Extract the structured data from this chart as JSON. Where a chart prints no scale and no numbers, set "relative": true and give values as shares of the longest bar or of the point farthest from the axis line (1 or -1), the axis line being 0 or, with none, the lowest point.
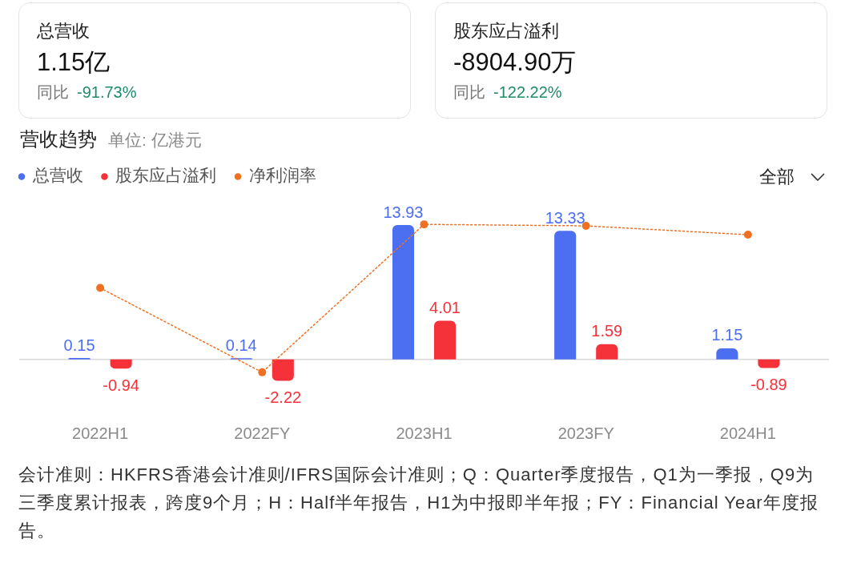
{
  "chart_data": [
    {
      "type": "other",
      "title": "总营收",
      "annotations": [
        "1.15亿",
        "同比",
        "-91.73%"
      ]
    },
    {
      "type": "other",
      "title": "股东应占溢利",
      "annotations": [
        "-8904.90万",
        "同比",
        "-122.22%"
      ]
    },
    {
      "type": "bar",
      "title": "营收趋势",
      "subtitle": "单位: 亿港元",
      "categories": [
        "2022H1",
        "2022FY",
        "2023H1",
        "2023FY",
        "2024H1"
      ],
      "series": [
        {
          "name": "总营收",
          "color": "#4c6ef0",
          "values": [
            0.15,
            0.14,
            13.93,
            13.33,
            1.15
          ],
          "value_labels": [
            "0.15",
            "0.14",
            "13.93",
            "13.33",
            "1.15"
          ]
        },
        {
          "name": "股东应占溢利",
          "color": "#f5313a",
          "values": [
            -0.94,
            -2.22,
            4.01,
            1.59,
            -0.89
          ],
          "value_labels": [
            "-0.94",
            "-2.22",
            "4.01",
            "1.59",
            "-0.89"
          ]
        }
      ],
      "legend": "top left",
      "tick_labels": "x",
      "annotations": [
        "全部",
        "会计准则：HKFRS香港会计准则/IFRS国际会计准则；Q：Quarter季度报告，Q1为一季报，Q9为三季度累计报表，跨度9个月；H：Half半年报告，H1为中报即半年报；FY：Financial Year年度报告。"
      ]
    },
    {
      "type": "line",
      "relative": true,
      "categories": [
        null,
        null,
        null,
        null,
        null
      ],
      "series": [
        {
          "name": "净利润率",
          "color": "#f07022",
          "values": [
            0.57,
            0,
            1,
            0.99,
            0.93
          ]
        }
      ],
      "legend": "top left",
      "marker": "circle",
      "line_style": "dotted",
      "tick_labels": false
    }
  ]
}
